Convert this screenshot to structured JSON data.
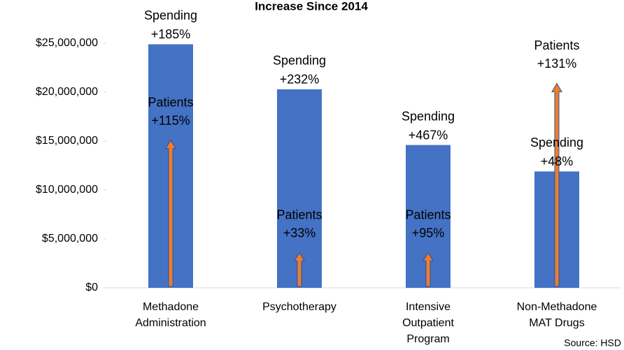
{
  "chart_data": {
    "type": "bar",
    "title": "Increase Since 2014",
    "categories": [
      [
        "Methadone",
        "Administration"
      ],
      [
        "Psychotherapy"
      ],
      [
        "Intensive",
        "Outpatient",
        "Program"
      ],
      [
        "Non-Methadone",
        "MAT Drugs"
      ]
    ],
    "values": [
      24900000,
      20300000,
      14600000,
      11900000
    ],
    "color": "#4472c4",
    "arrow_values": [
      15100000,
      3600000,
      3600000,
      20900000
    ],
    "arrow_color": "#ed7d31",
    "spending_labels": [
      [
        "Spending",
        "+185%"
      ],
      [
        "Spending",
        "+232%"
      ],
      [
        "Spending",
        "+467%"
      ],
      [
        "Spending",
        "+48%"
      ]
    ],
    "patient_labels": [
      [
        "Patients",
        "+115%"
      ],
      [
        "Patients",
        "+33%"
      ],
      [
        "Patients",
        "+95%"
      ],
      [
        "Patients",
        "+131%"
      ]
    ],
    "ylim": [
      0,
      25000000
    ],
    "yticks": [
      {
        "value": 0,
        "label": "$0"
      },
      {
        "value": 5000000,
        "label": "$5,000,000"
      },
      {
        "value": 10000000,
        "label": "$10,000,000"
      },
      {
        "value": 15000000,
        "label": "$15,000,000"
      },
      {
        "value": 20000000,
        "label": "$20,000,000"
      },
      {
        "value": 25000000,
        "label": "$25,000,000"
      }
    ],
    "source": "Source: HSD"
  }
}
